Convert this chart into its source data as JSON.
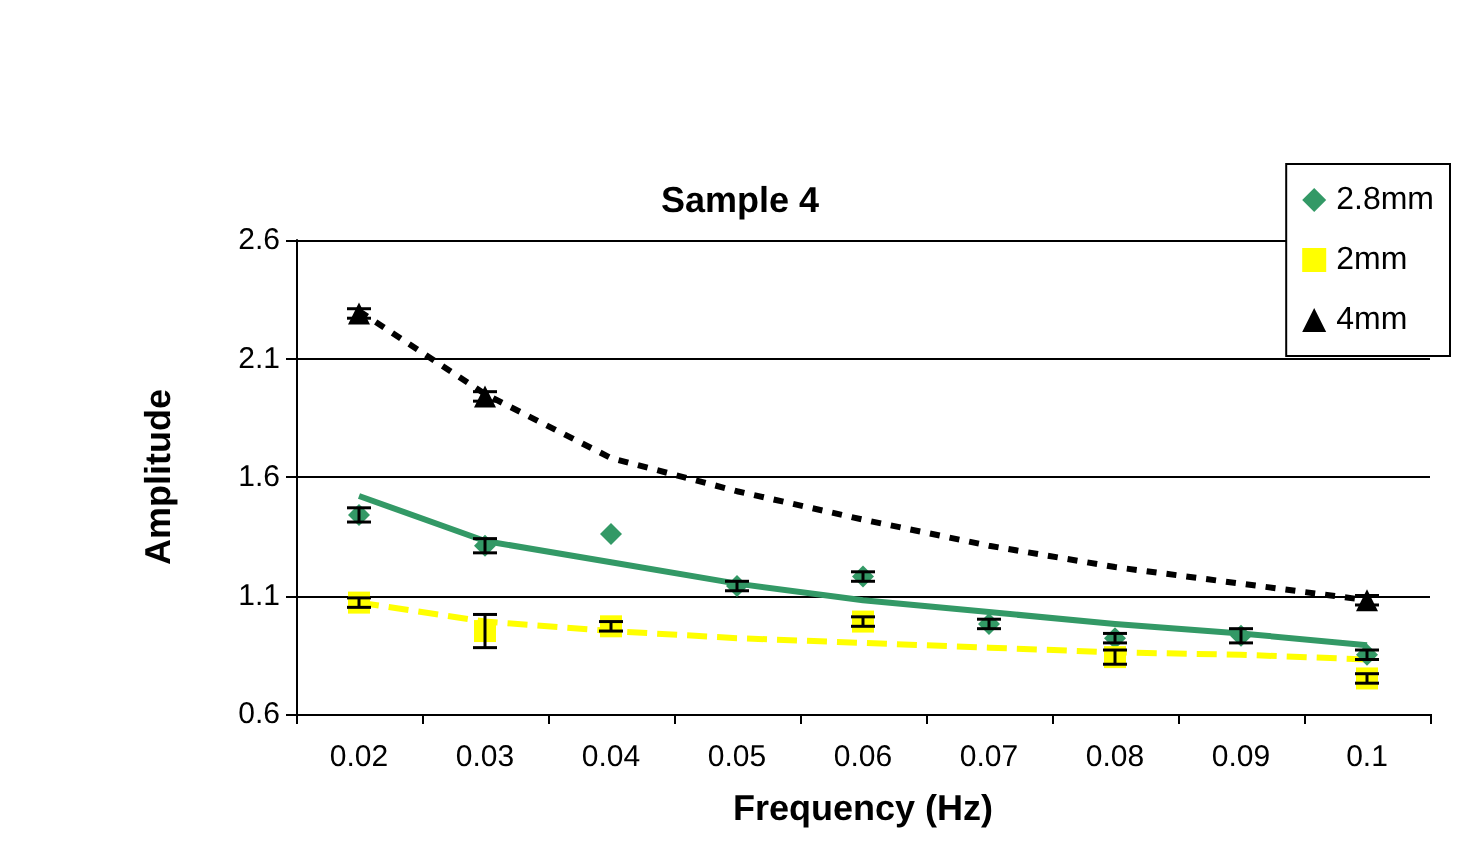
{
  "chart_data": {
    "type": "scatter",
    "title": "Sample 4",
    "xlabel": "Frequency (Hz)",
    "ylabel": "Amplitude",
    "categories": [
      "0.02",
      "0.03",
      "0.04",
      "0.05",
      "0.06",
      "0.07",
      "0.08",
      "0.09",
      "0.1"
    ],
    "series": [
      {
        "name": "2.8mm",
        "color": "#339966",
        "marker": "diamond",
        "values": [
          1.44,
          1.31,
          1.36,
          1.14,
          1.18,
          0.98,
          0.92,
          0.93,
          0.85
        ],
        "errors": [
          0.03,
          0.03,
          null,
          0.02,
          0.02,
          0.02,
          0.02,
          0.03,
          0.02
        ]
      },
      {
        "name": "2mm",
        "color": "#ffff00",
        "marker": "square",
        "values": [
          1.07,
          0.95,
          0.97,
          null,
          0.99,
          null,
          0.84,
          null,
          0.75
        ],
        "errors": [
          0.02,
          0.07,
          0.02,
          null,
          0.02,
          null,
          0.03,
          null,
          0.02
        ]
      },
      {
        "name": "4mm",
        "color": "#000000",
        "marker": "triangle",
        "values": [
          2.29,
          1.94,
          null,
          null,
          null,
          null,
          null,
          null,
          1.08
        ],
        "errors": [
          0.02,
          0.02,
          null,
          null,
          null,
          null,
          null,
          null,
          0.02
        ]
      },
      {
        "type": "line",
        "color": "#339966",
        "line_style": "solid",
        "values": [
          1.52,
          1.33,
          1.24,
          1.15,
          1.08,
          1.03,
          0.98,
          0.94,
          0.89
        ]
      },
      {
        "type": "line",
        "color": "#ffff00",
        "line_style": "dashed",
        "values": [
          1.07,
          0.99,
          0.95,
          0.92,
          0.9,
          0.88,
          0.86,
          0.85,
          0.83
        ]
      },
      {
        "type": "line",
        "color": "#000000",
        "line_style": "dotted",
        "values": [
          2.3,
          1.95,
          1.68,
          1.54,
          1.42,
          1.31,
          1.22,
          1.15,
          1.08
        ]
      }
    ],
    "ylim": [
      0.6,
      2.6
    ],
    "yticks": [
      0.6,
      1.1,
      1.6,
      2.1,
      2.6
    ],
    "grid": "y",
    "legend": "top right"
  }
}
